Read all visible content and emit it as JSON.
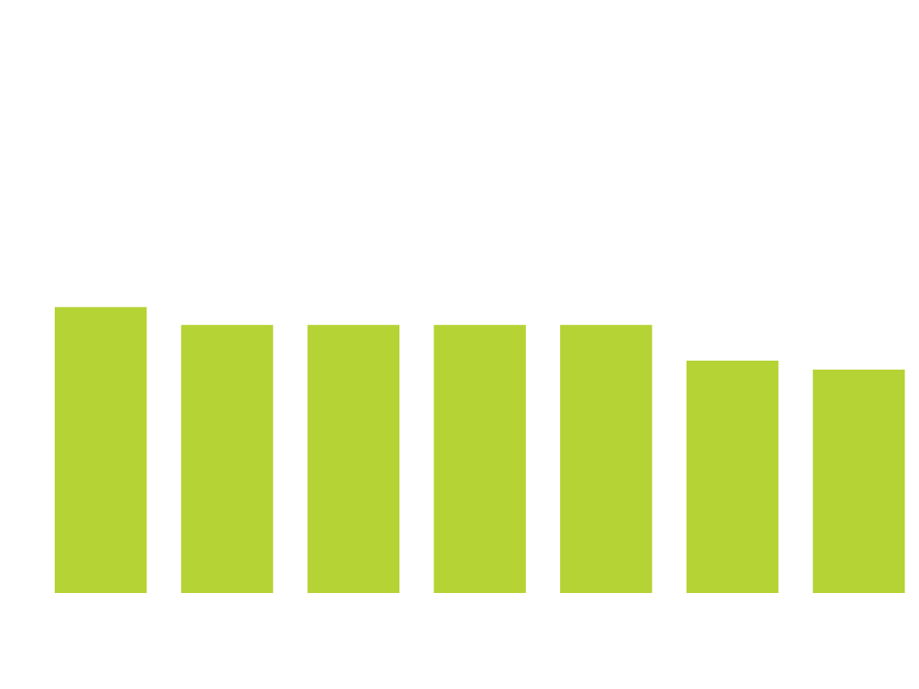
{
  "chart_data": {
    "type": "bar",
    "values": [
      32,
      30,
      30,
      30,
      30,
      26,
      25
    ],
    "ylim": [
      0,
      50
    ],
    "grid": false,
    "legend": "none",
    "bar_color": "#b5d334"
  }
}
